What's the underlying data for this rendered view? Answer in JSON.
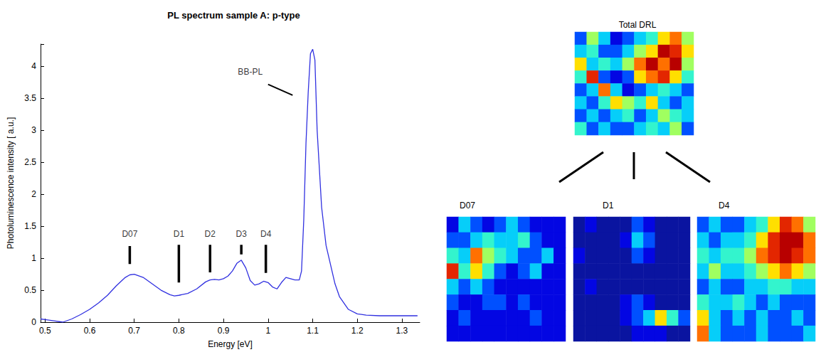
{
  "chart_data": [
    {
      "type": "line",
      "title": "PL spectrum sample A: p-type",
      "x_label": "Energy [eV]",
      "y_label": "Photoluminescence intensity [ a.u.]",
      "x": [
        0.49,
        0.5,
        0.52,
        0.54,
        0.56,
        0.58,
        0.6,
        0.62,
        0.64,
        0.66,
        0.68,
        0.69,
        0.7,
        0.72,
        0.74,
        0.76,
        0.78,
        0.79,
        0.8,
        0.82,
        0.84,
        0.86,
        0.87,
        0.88,
        0.89,
        0.9,
        0.91,
        0.92,
        0.93,
        0.94,
        0.95,
        0.96,
        0.97,
        0.98,
        0.99,
        1.0,
        1.01,
        1.02,
        1.03,
        1.04,
        1.05,
        1.06,
        1.07,
        1.075,
        1.08,
        1.085,
        1.09,
        1.095,
        1.1,
        1.105,
        1.11,
        1.12,
        1.13,
        1.14,
        1.15,
        1.16,
        1.18,
        1.2,
        1.22,
        1.25,
        1.3,
        1.335
      ],
      "values": [
        0.05,
        0.04,
        0.02,
        0.0,
        0.05,
        0.12,
        0.2,
        0.3,
        0.42,
        0.57,
        0.7,
        0.74,
        0.75,
        0.7,
        0.6,
        0.5,
        0.43,
        0.41,
        0.42,
        0.45,
        0.52,
        0.63,
        0.66,
        0.67,
        0.66,
        0.68,
        0.72,
        0.8,
        0.92,
        0.97,
        0.85,
        0.65,
        0.58,
        0.6,
        0.64,
        0.62,
        0.55,
        0.52,
        0.62,
        0.7,
        0.68,
        0.66,
        0.66,
        0.8,
        1.6,
        2.8,
        3.6,
        4.2,
        4.27,
        4.1,
        3.0,
        1.8,
        1.2,
        0.9,
        0.6,
        0.4,
        0.2,
        0.13,
        0.11,
        0.1,
        0.1,
        0.1
      ],
      "color": "#3030e0",
      "xlim": [
        0.49,
        1.34
      ],
      "xticks": [
        0.5,
        0.6,
        0.7,
        0.8,
        0.9,
        1,
        1.1,
        1.2,
        1.3
      ],
      "ylim": [
        0,
        4.35
      ],
      "yticks": [
        0,
        0.5,
        1,
        1.5,
        2,
        2.5,
        3,
        3.5,
        4
      ],
      "grid": false,
      "annotations": [
        {
          "text": "D07",
          "x": 0.69,
          "y": 1.38,
          "line": [
            0.91,
            1.19
          ]
        },
        {
          "text": "D1",
          "x": 0.8,
          "y": 1.38,
          "line": [
            0.62,
            1.21
          ]
        },
        {
          "text": "D2",
          "x": 0.87,
          "y": 1.38,
          "line": [
            0.78,
            1.21
          ]
        },
        {
          "text": "D3",
          "x": 0.94,
          "y": 1.38,
          "line": [
            1.06,
            1.21
          ]
        },
        {
          "text": "D4",
          "x": 0.995,
          "y": 1.38,
          "line": [
            0.77,
            1.21
          ]
        },
        {
          "text": "BB-PL",
          "x": 0.96,
          "y": 3.92,
          "pointer": [
            [
              1.0,
              3.72
            ],
            [
              1.055,
              3.55
            ]
          ]
        }
      ]
    },
    {
      "type": "heatmap",
      "title": "Total DRL",
      "tick_labels": false,
      "zlim": [
        0,
        10
      ],
      "cells": [
        [
          2,
          5,
          3,
          1,
          2,
          3,
          4,
          6,
          7,
          5
        ],
        [
          3,
          4,
          2,
          2,
          3,
          5,
          6,
          9,
          8,
          6
        ],
        [
          6,
          3,
          4,
          3,
          5,
          7,
          9,
          7,
          9,
          5
        ],
        [
          4,
          8,
          2,
          1,
          2,
          6,
          7,
          8,
          6,
          4
        ],
        [
          2,
          3,
          7,
          3,
          1,
          2,
          3,
          4,
          3,
          2
        ],
        [
          3,
          2,
          4,
          6,
          5,
          4,
          6,
          3,
          2,
          3
        ],
        [
          2,
          3,
          2,
          3,
          4,
          2,
          3,
          5,
          4,
          3
        ],
        [
          4,
          2,
          3,
          2,
          2,
          3,
          4,
          3,
          5,
          2
        ]
      ]
    },
    {
      "type": "heatmap",
      "title": "D07",
      "tick_labels": false,
      "zlim": [
        0,
        10
      ],
      "cells": [
        [
          1,
          3,
          2,
          1,
          2,
          3,
          2,
          1,
          1,
          1
        ],
        [
          2,
          2,
          3,
          4,
          3,
          3,
          4,
          2,
          1,
          1
        ],
        [
          4,
          3,
          7,
          5,
          4,
          3,
          2,
          2,
          3,
          1
        ],
        [
          8,
          4,
          6,
          4,
          2,
          1,
          2,
          3,
          1,
          1
        ],
        [
          3,
          2,
          3,
          2,
          1,
          1,
          1,
          1,
          1,
          1
        ],
        [
          2,
          1,
          1,
          2,
          2,
          1,
          2,
          1,
          1,
          1
        ],
        [
          1,
          2,
          1,
          1,
          1,
          1,
          1,
          2,
          1,
          1
        ],
        [
          1,
          1,
          1,
          1,
          1,
          1,
          1,
          1,
          1,
          1
        ]
      ]
    },
    {
      "type": "heatmap",
      "title": "D1",
      "tick_labels": false,
      "zlim": [
        0,
        10
      ],
      "cells": [
        [
          0,
          1,
          0,
          0,
          0,
          2,
          1,
          0,
          0,
          0
        ],
        [
          0,
          0,
          0,
          0,
          1,
          3,
          2,
          0,
          0,
          0
        ],
        [
          1,
          0,
          0,
          0,
          0,
          2,
          1,
          0,
          0,
          0
        ],
        [
          0,
          0,
          0,
          0,
          0,
          0,
          0,
          0,
          0,
          0
        ],
        [
          0,
          1,
          0,
          0,
          0,
          0,
          0,
          0,
          0,
          0
        ],
        [
          0,
          0,
          0,
          0,
          1,
          2,
          1,
          0,
          0,
          0
        ],
        [
          0,
          0,
          0,
          0,
          1,
          2,
          3,
          6,
          4,
          2
        ],
        [
          0,
          0,
          0,
          0,
          0,
          1,
          1,
          1,
          0,
          0
        ]
      ]
    },
    {
      "type": "heatmap",
      "title": "D4",
      "tick_labels": false,
      "zlim": [
        0,
        10
      ],
      "cells": [
        [
          2,
          3,
          2,
          2,
          3,
          4,
          6,
          8,
          7,
          5
        ],
        [
          3,
          2,
          3,
          3,
          4,
          6,
          8,
          9,
          9,
          7
        ],
        [
          4,
          3,
          4,
          4,
          5,
          7,
          8,
          9,
          8,
          7
        ],
        [
          3,
          5,
          3,
          3,
          4,
          5,
          6,
          7,
          6,
          5
        ],
        [
          2,
          3,
          2,
          2,
          3,
          3,
          4,
          4,
          3,
          3
        ],
        [
          4,
          3,
          3,
          4,
          3,
          2,
          3,
          2,
          2,
          2
        ],
        [
          6,
          3,
          2,
          3,
          2,
          3,
          2,
          2,
          3,
          2
        ],
        [
          7,
          3,
          2,
          2,
          2,
          3,
          2,
          2,
          2,
          3
        ]
      ]
    }
  ]
}
